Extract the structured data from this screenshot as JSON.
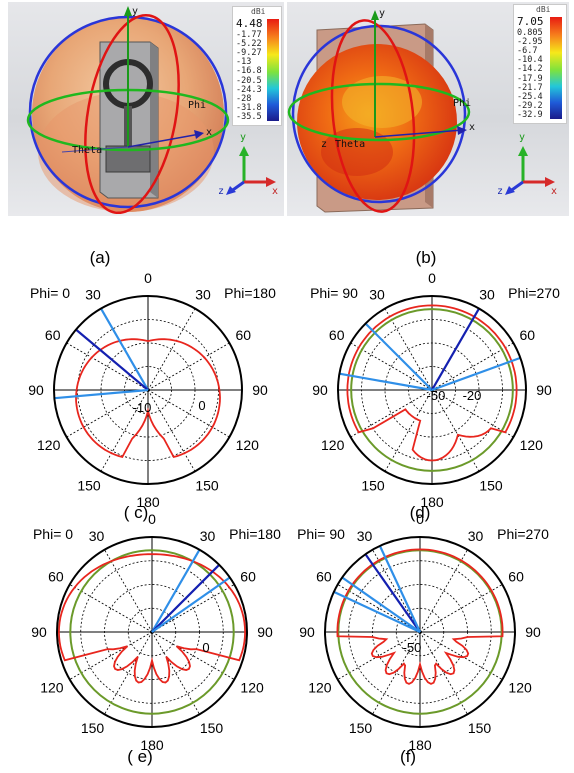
{
  "panels": {
    "a": {
      "label": "(a)",
      "scale": {
        "unit": "dBi",
        "max": "4.48",
        "ticks": [
          "-1.77",
          "-5.22",
          "-9.27",
          "-13",
          "-16.8",
          "-20.5",
          "-24.3",
          "-28",
          "-31.8",
          "-35.5"
        ]
      },
      "axes": {
        "phi": "Phi",
        "theta": "Theta",
        "x": "x",
        "y": "y",
        "z": "z"
      }
    },
    "b": {
      "label": "(b)",
      "scale": {
        "unit": "dBi",
        "max": "7.05",
        "ticks": [
          "0.805",
          "-2.95",
          "-6.7",
          "-10.4",
          "-14.2",
          "-17.9",
          "-21.7",
          "-25.4",
          "-29.2",
          "-32.9"
        ]
      },
      "axes": {
        "phi": "Phi",
        "theta": "Theta",
        "x": "x",
        "y": "y",
        "z": "z"
      }
    },
    "c": {
      "label": "( c)",
      "phi_left": "Phi=  0",
      "phi_right": "Phi=180",
      "angles": {
        "top": "0",
        "l30": "30",
        "r30": "30",
        "l60": "60",
        "r60": "60",
        "l90": "90",
        "r90": "90",
        "l120": "120",
        "r120": "120",
        "l150": "150",
        "r150": "150",
        "bottom": "180"
      },
      "inner": [
        "-10",
        "0"
      ]
    },
    "d": {
      "label": "(d)",
      "phi_left": "Phi= 90",
      "phi_right": "Phi=270",
      "angles": {
        "top": "0",
        "l30": "30",
        "r30": "30",
        "l60": "60",
        "r60": "60",
        "l90": "90",
        "r90": "90",
        "l120": "120",
        "r120": "120",
        "l150": "150",
        "r150": "150",
        "bottom": "180"
      },
      "inner": [
        "-50",
        "-20"
      ]
    },
    "e": {
      "label": "( e)",
      "phi_left": "Phi=  0",
      "phi_right": "Phi=180",
      "angles": {
        "top": "0",
        "l30": "30",
        "r30": "30",
        "l60": "60",
        "r60": "60",
        "l90": "90",
        "r90": "90",
        "l120": "120",
        "r120": "120",
        "l150": "150",
        "r150": "150",
        "bottom": "180"
      },
      "inner": [
        "0"
      ]
    },
    "f": {
      "label": "(f)",
      "phi_left": "Phi= 90",
      "phi_right": "Phi=270",
      "angles": {
        "top": "0",
        "l30": "30",
        "r30": "30",
        "l60": "60",
        "r60": "60",
        "l90": "90",
        "r90": "90",
        "l120": "120",
        "r120": "120",
        "l150": "150",
        "r150": "150",
        "bottom": "180"
      },
      "inner": [
        "-50"
      ]
    }
  },
  "colors": {
    "pattern": "#e8261e",
    "reference": "#6b9a2a",
    "beam": "#2f8fe8",
    "beam_dark": "#1420b0"
  }
}
